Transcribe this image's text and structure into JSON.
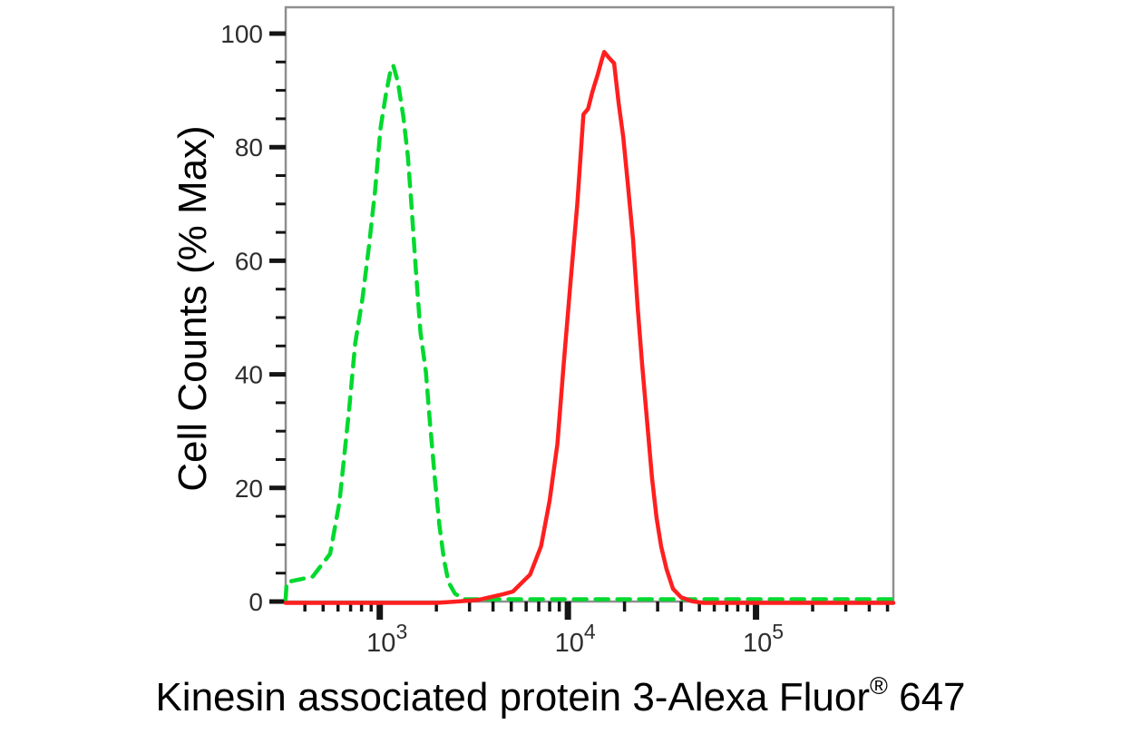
{
  "chart_data": {
    "type": "line",
    "subtype": "flow-cytometry-histogram",
    "title": "",
    "ylabel": "Cell Counts (% Max)",
    "xlabel_main": "Kinesin associated protein 3-Alexa Fluor",
    "xlabel_sup": "®",
    "xlabel_suffix": " 647",
    "x_scale": "log",
    "x_log_range": [
      2.5,
      5.73
    ],
    "ylim": [
      0,
      104.5
    ],
    "grid": false,
    "legend": "none",
    "x_tick_base": "10",
    "x_major_ticks": [
      {
        "value": 1000,
        "exponent": "3"
      },
      {
        "value": 10000,
        "exponent": "4"
      },
      {
        "value": 100000,
        "exponent": "5"
      }
    ],
    "y_major_ticks": [
      0,
      20,
      40,
      60,
      80,
      100
    ],
    "y_minor_step": 5,
    "axis_color": "#8f8f8f",
    "tick_color": "#151515",
    "tick_label_color": "#2e2e2e",
    "series": [
      {
        "name": "green-dashed-curve",
        "color": "#00d92e",
        "line_style": "dashed",
        "peak_x": 1180,
        "peak_y": 94,
        "points": [
          [
            316,
            0
          ],
          [
            320,
            3
          ],
          [
            440,
            4
          ],
          [
            545,
            8
          ],
          [
            610,
            17
          ],
          [
            690,
            34
          ],
          [
            740,
            45
          ],
          [
            810,
            53
          ],
          [
            875,
            62
          ],
          [
            945,
            72
          ],
          [
            1010,
            83
          ],
          [
            1080,
            89
          ],
          [
            1140,
            93
          ],
          [
            1180,
            94
          ],
          [
            1250,
            91
          ],
          [
            1335,
            85
          ],
          [
            1410,
            78
          ],
          [
            1470,
            70
          ],
          [
            1555,
            58
          ],
          [
            1645,
            47
          ],
          [
            1760,
            40
          ],
          [
            1840,
            32
          ],
          [
            1965,
            21
          ],
          [
            2075,
            13
          ],
          [
            2195,
            7
          ],
          [
            2320,
            3
          ],
          [
            2510,
            1
          ],
          [
            2800,
            0
          ],
          [
            537000,
            0
          ]
        ]
      },
      {
        "name": "red-solid-curve",
        "color": "#ff1f1f",
        "line_style": "solid",
        "peak_x": 15600,
        "peak_y": 97,
        "points": [
          [
            316,
            0
          ],
          [
            2000,
            0
          ],
          [
            3300,
            0.5
          ],
          [
            4500,
            1.5
          ],
          [
            5100,
            2
          ],
          [
            6300,
            5
          ],
          [
            7200,
            10
          ],
          [
            8000,
            18
          ],
          [
            8800,
            28
          ],
          [
            9500,
            42
          ],
          [
            10300,
            56
          ],
          [
            11200,
            70
          ],
          [
            12100,
            86
          ],
          [
            12800,
            87
          ],
          [
            13500,
            90
          ],
          [
            14400,
            93
          ],
          [
            15100,
            95.5
          ],
          [
            15600,
            97
          ],
          [
            16500,
            96
          ],
          [
            17600,
            95
          ],
          [
            18600,
            88
          ],
          [
            19700,
            82
          ],
          [
            20800,
            74
          ],
          [
            22200,
            64
          ],
          [
            23500,
            52
          ],
          [
            24800,
            42
          ],
          [
            26200,
            33
          ],
          [
            28000,
            22
          ],
          [
            29600,
            15
          ],
          [
            31300,
            10
          ],
          [
            33400,
            6
          ],
          [
            36200,
            2.5
          ],
          [
            39900,
            1
          ],
          [
            45600,
            0.3
          ],
          [
            52600,
            0
          ],
          [
            537000,
            0
          ]
        ]
      }
    ]
  }
}
